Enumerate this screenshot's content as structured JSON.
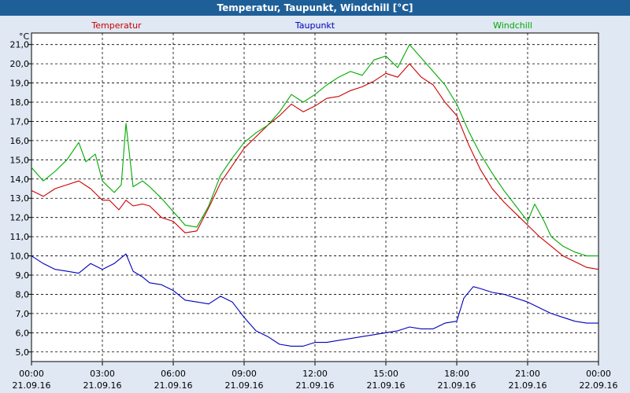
{
  "window": {
    "title": "Temperatur, Taupunkt, Windchill [°C]"
  },
  "colors": {
    "title_bar": "#1f5f98",
    "plot_bg": "#ffffff",
    "grid": "#000000"
  },
  "chart_data": {
    "type": "line",
    "title": "Temperatur, Taupunkt, Windchill [°C]",
    "ylabel": "°C",
    "ylim": [
      4.5,
      21.6
    ],
    "y_ticks": [
      "5,0",
      "6,0",
      "7,0",
      "8,0",
      "9,0",
      "10,0",
      "11,0",
      "12,0",
      "13,0",
      "14,0",
      "15,0",
      "16,0",
      "17,0",
      "18,0",
      "19,0",
      "20,0",
      "21,0"
    ],
    "x_ticks": [
      {
        "time": "00:00",
        "date": "21.09.16"
      },
      {
        "time": "03:00",
        "date": "21.09.16"
      },
      {
        "time": "06:00",
        "date": "21.09.16"
      },
      {
        "time": "09:00",
        "date": "21.09.16"
      },
      {
        "time": "12:00",
        "date": "21.09.16"
      },
      {
        "time": "15:00",
        "date": "21.09.16"
      },
      {
        "time": "18:00",
        "date": "21.09.16"
      },
      {
        "time": "21:00",
        "date": "21.09.16"
      },
      {
        "time": "00:00",
        "date": "22.09.16"
      }
    ],
    "grid": true,
    "series": [
      {
        "name": "Temperatur",
        "color": "#cc0000",
        "x": [
          0,
          0.5,
          1,
          1.5,
          2,
          2.5,
          3,
          3.3,
          3.7,
          4,
          4.3,
          4.7,
          5,
          5.5,
          6,
          6.5,
          7,
          7.5,
          8,
          8.5,
          9,
          9.5,
          10,
          10.5,
          11,
          11.5,
          12,
          12.5,
          13,
          13.5,
          14,
          14.5,
          15,
          15.5,
          16,
          16.5,
          17,
          17.5,
          18,
          18.5,
          19,
          19.5,
          20,
          20.5,
          21,
          21.5,
          22,
          22.5,
          23,
          23.5,
          24
        ],
        "values": [
          13.4,
          13.1,
          13.5,
          13.7,
          13.9,
          13.5,
          12.9,
          12.9,
          12.4,
          12.9,
          12.6,
          12.7,
          12.6,
          12.0,
          11.8,
          11.2,
          11.3,
          12.5,
          13.8,
          14.7,
          15.6,
          16.2,
          16.8,
          17.3,
          17.9,
          17.5,
          17.8,
          18.2,
          18.3,
          18.6,
          18.8,
          19.1,
          19.5,
          19.3,
          20.0,
          19.3,
          18.9,
          18.0,
          17.3,
          15.8,
          14.5,
          13.5,
          12.8,
          12.2,
          11.6,
          11.0,
          10.5,
          10.0,
          9.7,
          9.4,
          9.3
        ]
      },
      {
        "name": "Taupunkt",
        "color": "#0000bb",
        "x": [
          0,
          0.5,
          1,
          1.5,
          2,
          2.5,
          3,
          3.5,
          4,
          4.3,
          4.7,
          5,
          5.5,
          6,
          6.5,
          7,
          7.5,
          8,
          8.5,
          9,
          9.5,
          10,
          10.5,
          11,
          11.5,
          12,
          12.5,
          13,
          13.5,
          14,
          14.5,
          15,
          15.5,
          16,
          16.5,
          17,
          17.5,
          18,
          18.3,
          18.7,
          19,
          19.5,
          20,
          20.5,
          21,
          21.5,
          22,
          22.5,
          23,
          23.5,
          24
        ],
        "values": [
          10.0,
          9.6,
          9.3,
          9.2,
          9.1,
          9.6,
          9.3,
          9.6,
          10.1,
          9.2,
          8.9,
          8.6,
          8.5,
          8.2,
          7.7,
          7.6,
          7.5,
          7.9,
          7.6,
          6.8,
          6.1,
          5.8,
          5.4,
          5.3,
          5.3,
          5.5,
          5.5,
          5.6,
          5.7,
          5.8,
          5.9,
          6.0,
          6.1,
          6.3,
          6.2,
          6.2,
          6.5,
          6.6,
          7.8,
          8.4,
          8.3,
          8.1,
          8.0,
          7.8,
          7.6,
          7.3,
          7.0,
          6.8,
          6.6,
          6.5,
          6.5
        ]
      },
      {
        "name": "Windchill",
        "color": "#00aa00",
        "x": [
          0,
          0.5,
          1,
          1.5,
          2,
          2.3,
          2.7,
          3,
          3.5,
          3.8,
          4,
          4.3,
          4.7,
          5,
          5.5,
          6,
          6.5,
          7,
          7.5,
          8,
          8.5,
          9,
          9.5,
          10,
          10.5,
          11,
          11.5,
          12,
          12.5,
          13,
          13.5,
          14,
          14.5,
          15,
          15.5,
          16,
          16.5,
          17,
          17.5,
          18,
          18.5,
          19,
          19.5,
          20,
          20.5,
          21,
          21.3,
          21.7,
          22,
          22.5,
          23,
          23.5,
          24
        ],
        "values": [
          14.6,
          13.9,
          14.4,
          15.0,
          15.9,
          14.9,
          15.3,
          13.9,
          13.3,
          13.7,
          16.9,
          13.6,
          13.9,
          13.6,
          13.0,
          12.3,
          11.6,
          11.5,
          12.6,
          14.2,
          15.1,
          15.9,
          16.4,
          16.8,
          17.5,
          18.4,
          18.0,
          18.4,
          18.9,
          19.3,
          19.6,
          19.4,
          20.2,
          20.4,
          19.8,
          21.0,
          20.3,
          19.6,
          18.9,
          17.9,
          16.5,
          15.3,
          14.3,
          13.4,
          12.6,
          11.8,
          12.7,
          11.8,
          11.0,
          10.5,
          10.2,
          10.0,
          10.0
        ]
      }
    ]
  }
}
